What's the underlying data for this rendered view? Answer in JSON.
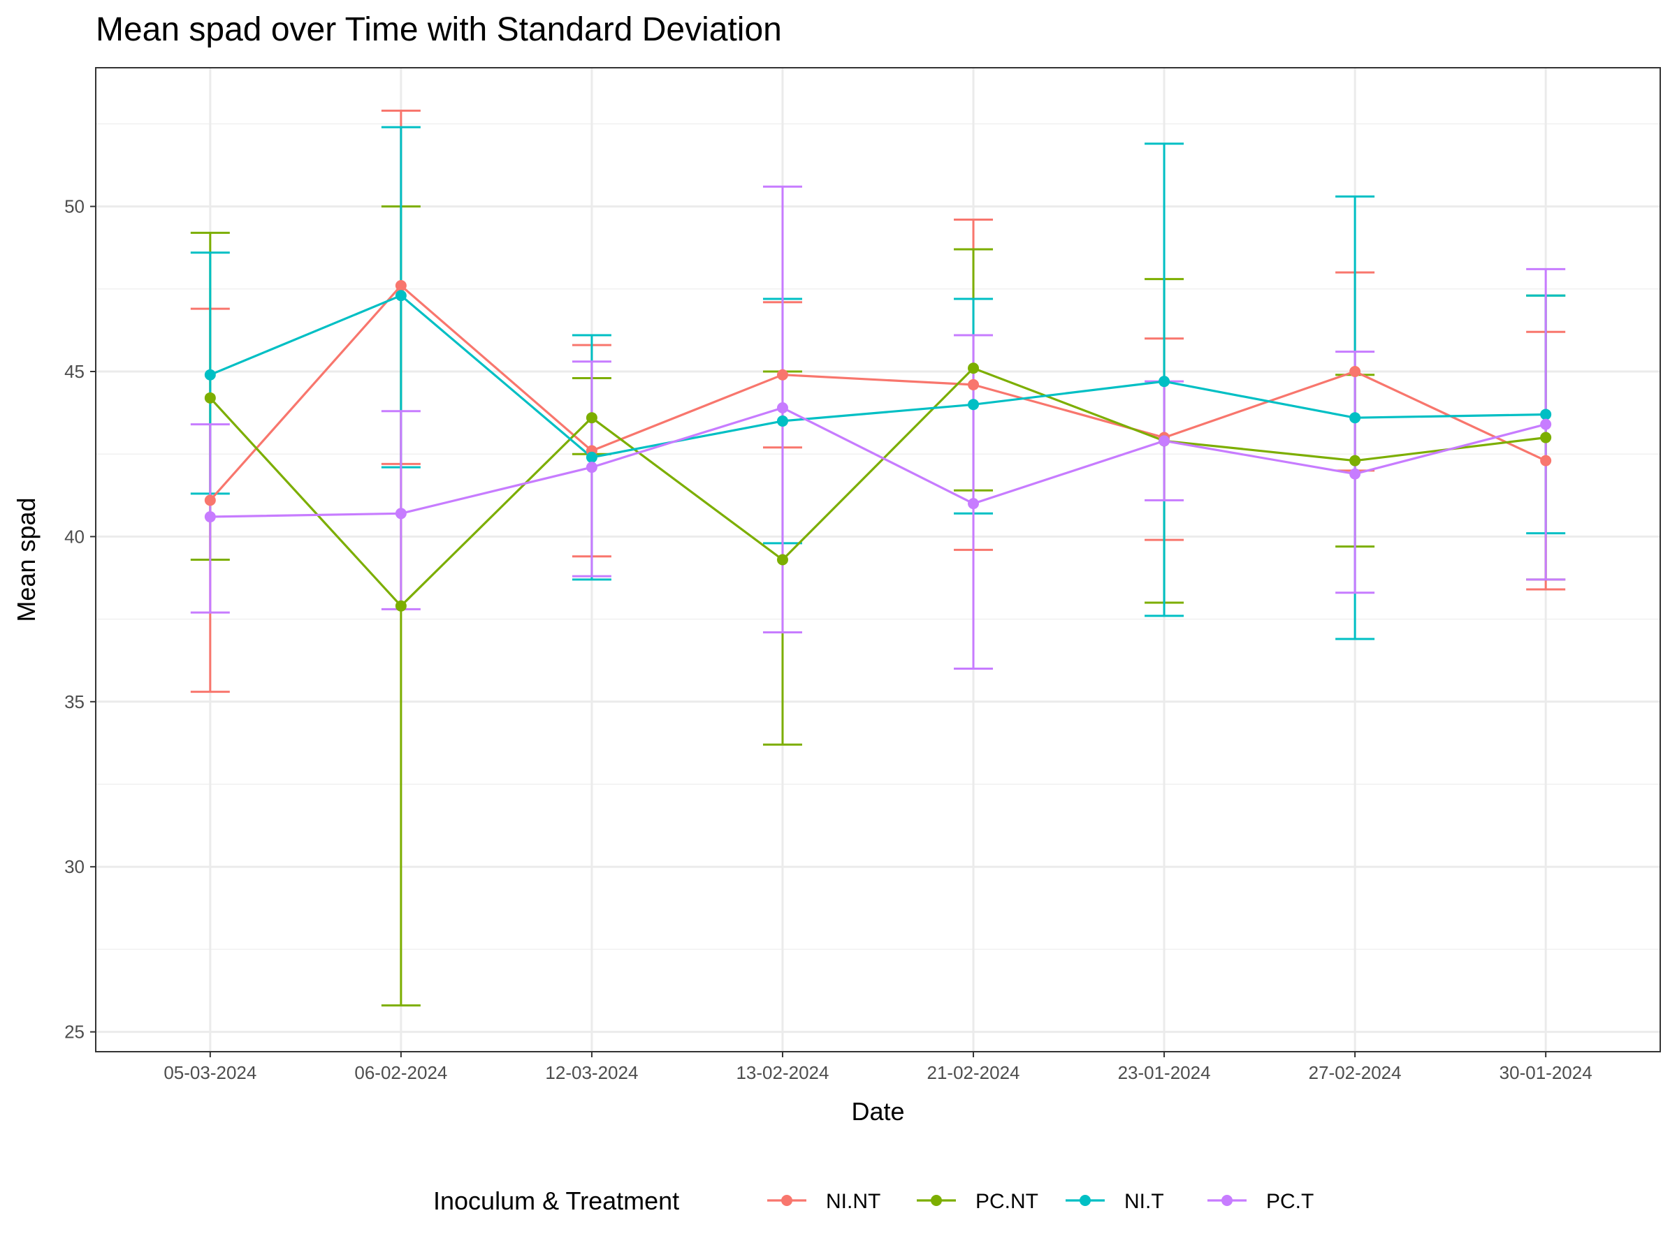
{
  "chart_data": {
    "type": "line",
    "title": "Mean spad over Time with Standard Deviation",
    "xlabel": "Date",
    "ylabel": "Mean spad",
    "ylim": [
      24.4,
      54.2
    ],
    "yticks": [
      25,
      30,
      35,
      40,
      45,
      50
    ],
    "grid": true,
    "legend_position": "bottom",
    "legend_title": "Inoculum & Treatment",
    "categories": [
      "05-03-2024",
      "06-02-2024",
      "12-03-2024",
      "13-02-2024",
      "21-02-2024",
      "23-01-2024",
      "27-02-2024",
      "30-01-2024"
    ],
    "series": [
      {
        "name": "NI.NT",
        "color": "#F8766D",
        "values": [
          41.1,
          47.6,
          42.6,
          44.9,
          44.6,
          43.0,
          45.0,
          42.3
        ],
        "lower": [
          35.3,
          42.2,
          39.4,
          42.7,
          39.6,
          39.9,
          42.0,
          38.4
        ],
        "upper": [
          46.9,
          52.9,
          45.8,
          47.1,
          49.6,
          46.0,
          48.0,
          46.2
        ]
      },
      {
        "name": "PC.NT",
        "color": "#7CAE00",
        "values": [
          44.2,
          37.9,
          43.6,
          39.3,
          45.1,
          42.9,
          42.3,
          43.0
        ],
        "lower": [
          39.3,
          25.8,
          42.5,
          33.7,
          41.4,
          38.0,
          39.7,
          38.7
        ],
        "upper": [
          49.2,
          50.0,
          44.8,
          45.0,
          48.7,
          47.8,
          44.9,
          47.3
        ]
      },
      {
        "name": "NI.T",
        "color": "#00BFC4",
        "values": [
          44.9,
          47.3,
          42.4,
          43.5,
          44.0,
          44.7,
          43.6,
          43.7
        ],
        "lower": [
          41.3,
          42.1,
          38.7,
          39.8,
          40.7,
          37.6,
          36.9,
          40.1
        ],
        "upper": [
          48.6,
          52.4,
          46.1,
          47.2,
          47.2,
          51.9,
          50.3,
          47.3
        ]
      },
      {
        "name": "PC.T",
        "color": "#C77CFF",
        "values": [
          40.6,
          40.7,
          42.1,
          43.9,
          41.0,
          42.9,
          41.9,
          43.4
        ],
        "lower": [
          37.7,
          37.8,
          38.8,
          37.1,
          36.0,
          41.1,
          38.3,
          38.7
        ],
        "upper": [
          43.4,
          43.8,
          45.3,
          50.6,
          46.1,
          44.7,
          45.6,
          48.1
        ]
      }
    ]
  }
}
